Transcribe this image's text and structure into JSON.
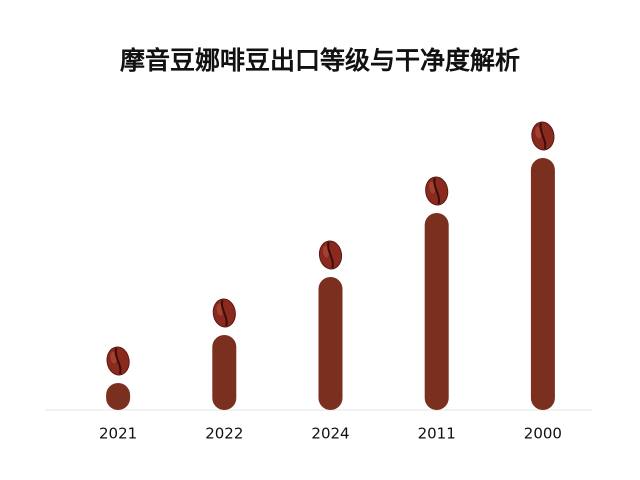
{
  "chart_data": {
    "type": "bar",
    "title": "摩音豆娜啡豆出口等级与干净度解析",
    "categories": [
      "2021",
      "2022",
      "2024",
      "2011",
      "2000"
    ],
    "values": [
      27,
      75,
      133,
      197,
      252
    ],
    "color": "#7b2f1f",
    "ylim": [
      0,
      280
    ]
  }
}
